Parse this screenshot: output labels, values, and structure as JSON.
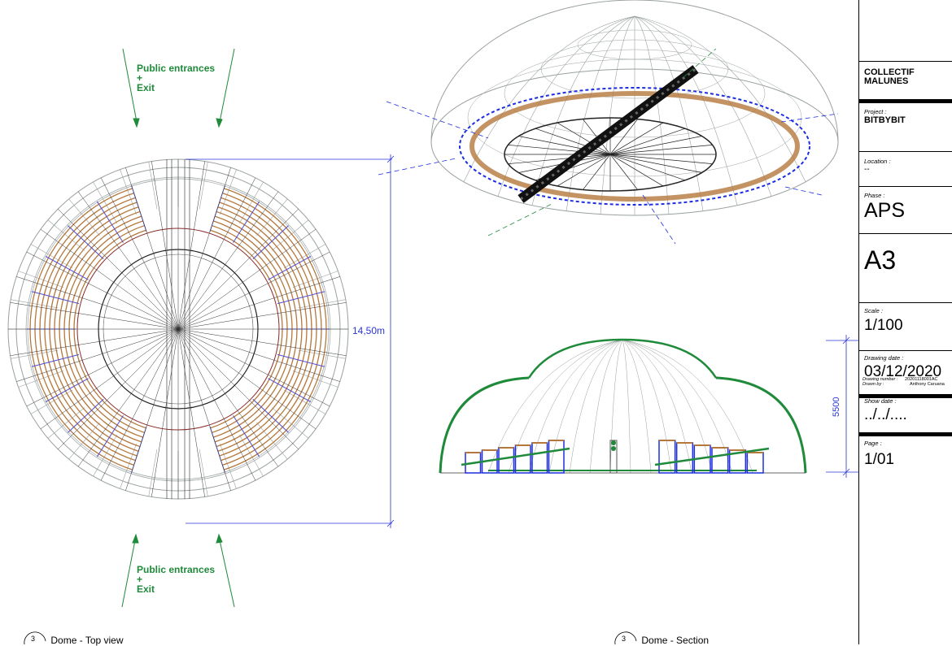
{
  "title_block": {
    "company": "COLLECTIF\nMALUNES",
    "project_label": "Project :",
    "project": "BITBYBIT",
    "location_label": "Location :",
    "location": "--",
    "phase_label": "Phase :",
    "phase": "APS",
    "format": "A3",
    "scale_label": "Scale :",
    "scale": "1/100",
    "drawing_date_label": "Drawing date :",
    "drawing_date": "03/12/2020",
    "drawing_number_label": "Drawing number :",
    "drawing_number": "20201118001AC",
    "drawn_by_label": "Drawn by :",
    "drawn_by": "Anthony Caruana",
    "show_date_label": "Show date :",
    "show_date": "../../....",
    "page_label": "Page :",
    "page": "1/01"
  },
  "annotations": {
    "entrance_top": "Public entrances\n+\nExit",
    "entrance_bottom": "Public entrances\n+\nExit",
    "diameter": "14,50m",
    "height": "5500"
  },
  "views": [
    {
      "number": "3",
      "title": "Dome - Top view"
    },
    {
      "number": "3",
      "title": "Dome - Section"
    }
  ],
  "colors": {
    "accent_green": "#1e8a3a",
    "dimension_blue": "#2a35d8",
    "structure_blue": "#1c2ee0",
    "wood_brown": "#b5783c",
    "frame_gray": "#9aa0a0"
  }
}
